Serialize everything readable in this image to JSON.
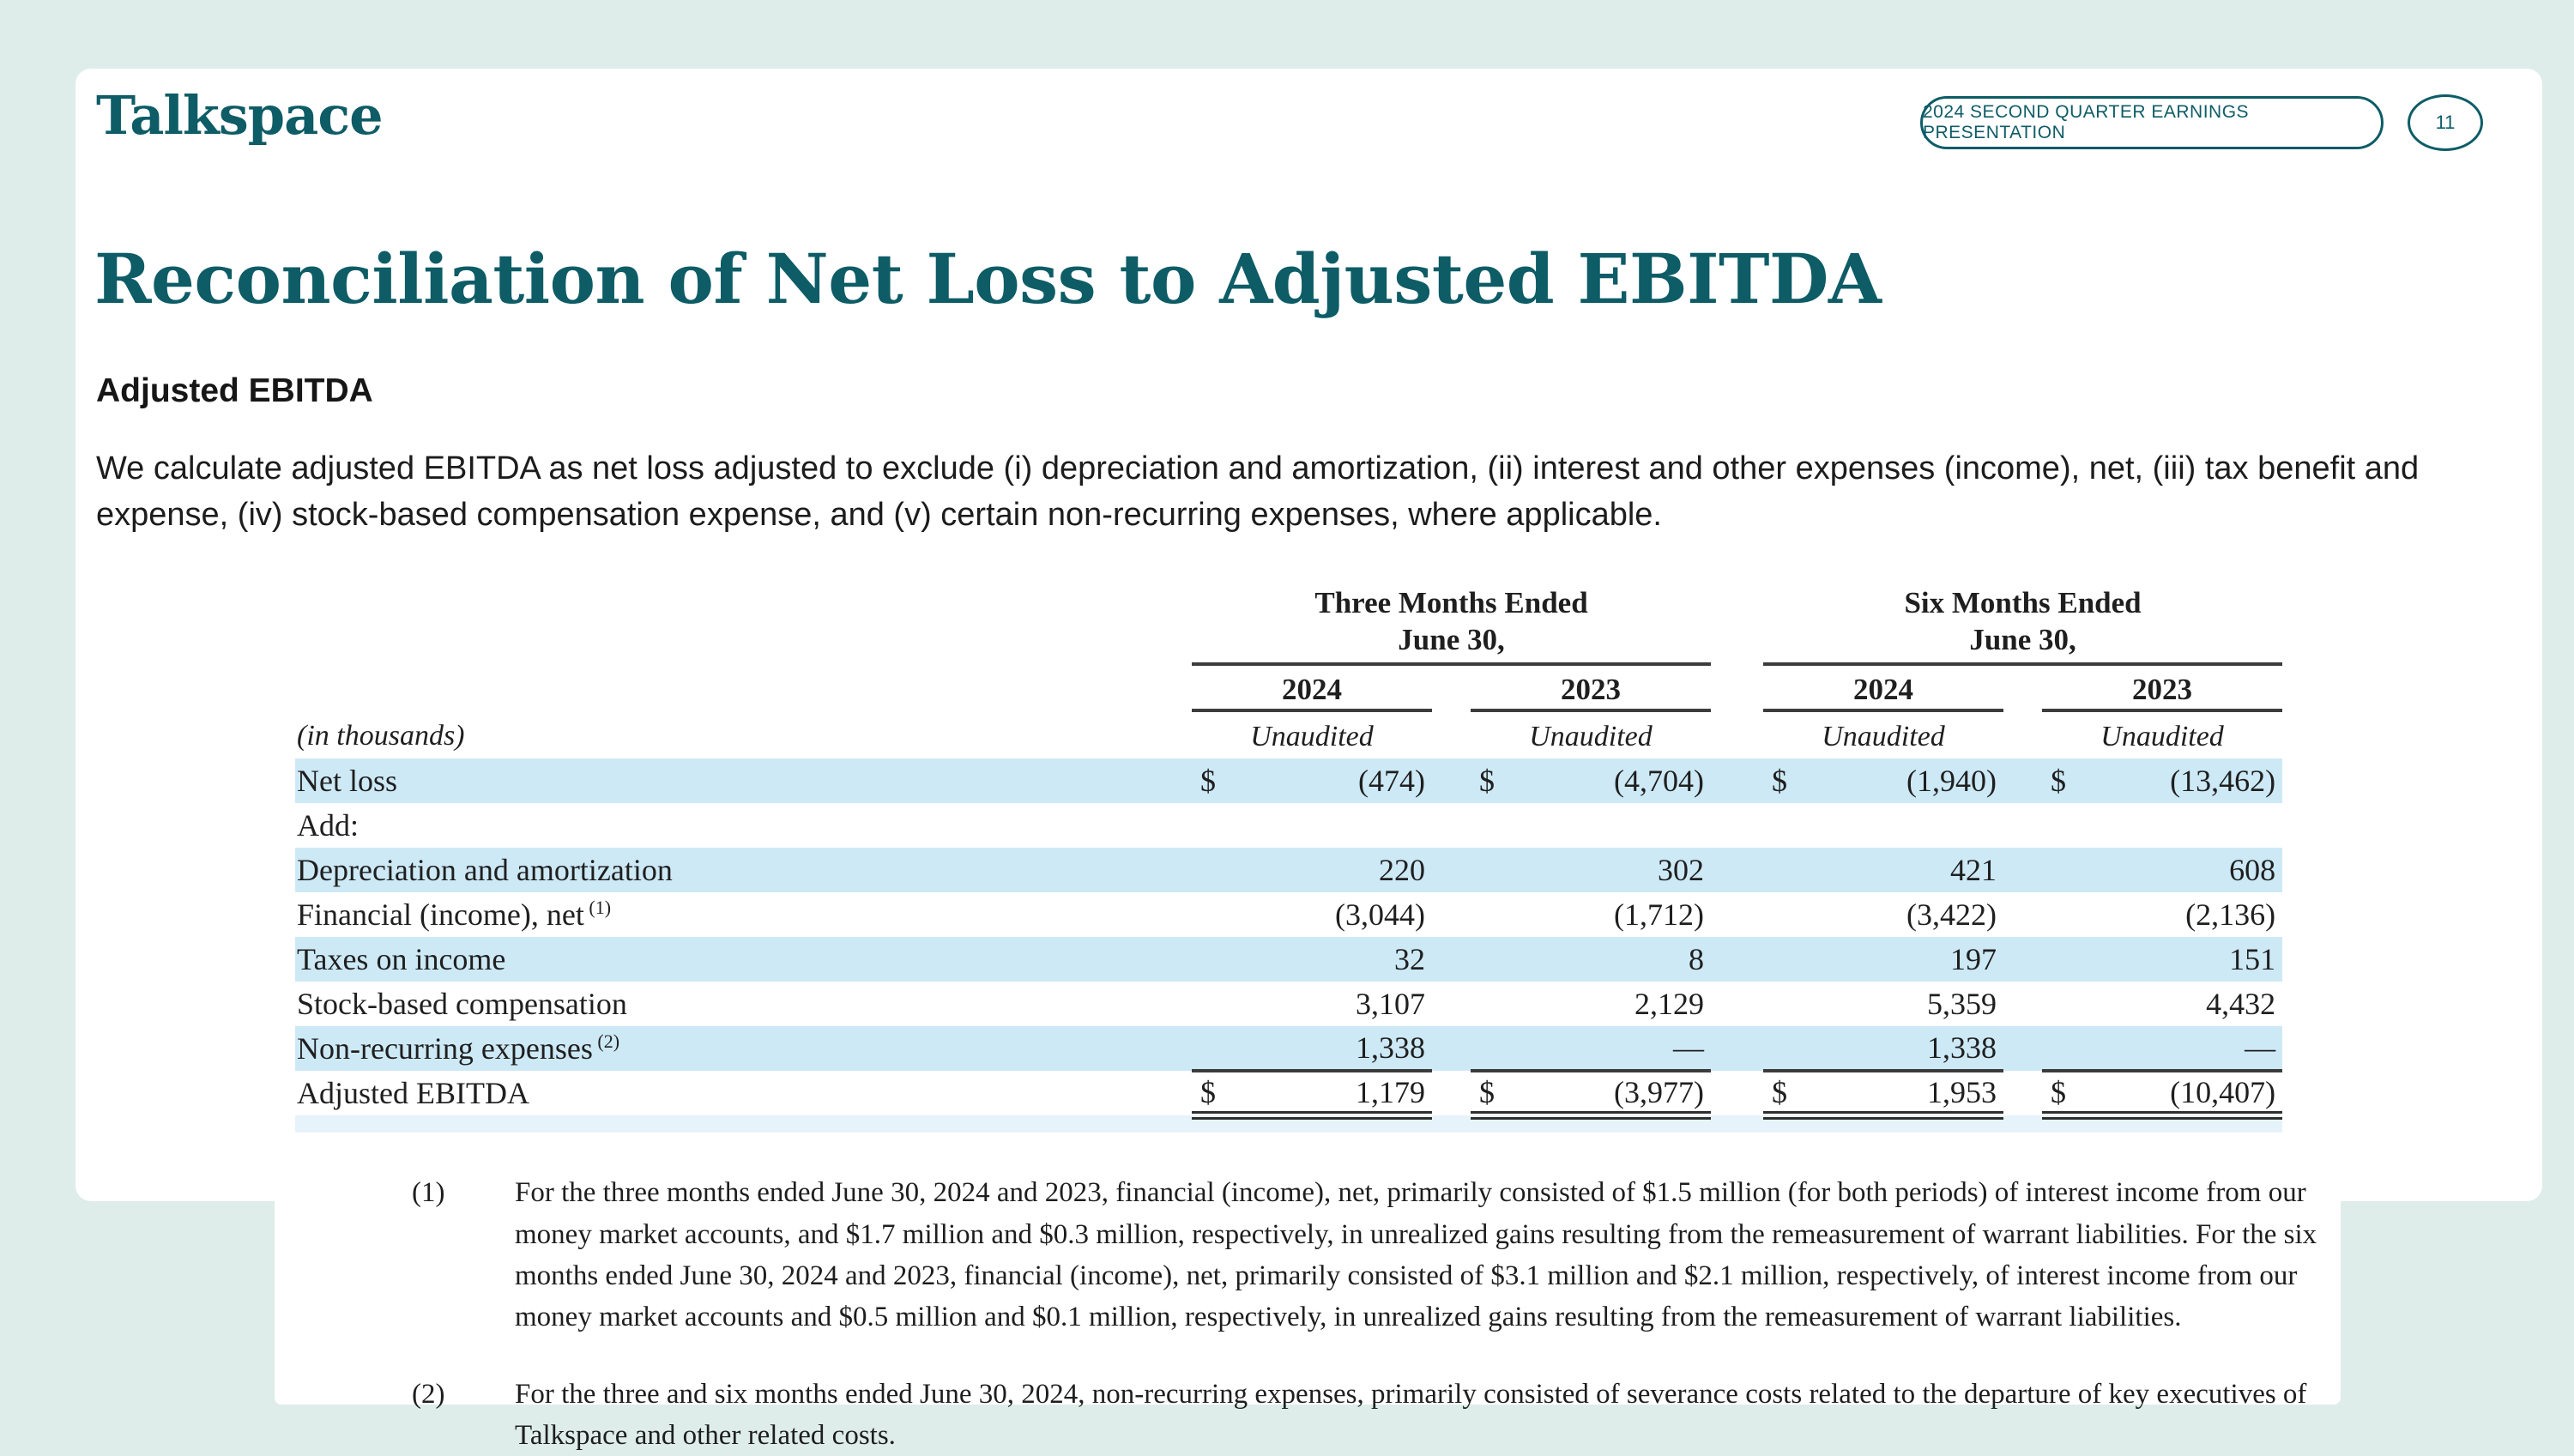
{
  "colors": {
    "background": "#deede9",
    "card": "#ffffff",
    "accent_teal": "#0d5c66",
    "row_blue": "#cde9f6",
    "row_pale": "#e7f3fa",
    "rule": "#3c3c3c"
  },
  "header": {
    "logo_text": "Talkspace",
    "badge_label": "2024 SECOND QUARTER EARNINGS PRESENTATION",
    "page_number": "11"
  },
  "title": "Reconciliation of Net Loss to Adjusted EBITDA",
  "section_heading": "Adjusted EBITDA",
  "intro_paragraph": "We calculate adjusted EBITDA as net loss adjusted to exclude (i) depreciation and amortization, (ii) interest and other expenses (income), net, (iii) tax benefit and expense, (iv) stock-based compensation expense, and (v) certain non-recurring expenses, where applicable.",
  "table": {
    "units_label": "(in thousands)",
    "unaudited_label": "Unaudited",
    "currency_symbol": "$",
    "col_groups": [
      {
        "line1": "Three Months Ended",
        "line2": "June 30,"
      },
      {
        "line1": "Six Months Ended",
        "line2": "June 30,"
      }
    ],
    "years": [
      "2024",
      "2023",
      "2024",
      "2023"
    ],
    "rows": [
      {
        "label": "Net loss",
        "dollar": true,
        "shaded": true,
        "values": [
          "(474)",
          "(4,704)",
          "(1,940)",
          "(13,462)"
        ]
      },
      {
        "label": "Add:",
        "dollar": false,
        "shaded": false,
        "values": [
          "",
          "",
          "",
          ""
        ]
      },
      {
        "label": "Depreciation and amortization",
        "dollar": false,
        "shaded": true,
        "values": [
          "220",
          "302",
          "421",
          "608"
        ]
      },
      {
        "label": "Financial (income), net",
        "sup": "(1)",
        "dollar": false,
        "shaded": false,
        "values": [
          "(3,044)",
          "(1,712)",
          "(3,422)",
          "(2,136)"
        ]
      },
      {
        "label": "Taxes on income",
        "dollar": false,
        "shaded": true,
        "values": [
          "32",
          "8",
          "197",
          "151"
        ]
      },
      {
        "label": "Stock-based compensation",
        "dollar": false,
        "shaded": false,
        "values": [
          "3,107",
          "2,129",
          "5,359",
          "4,432"
        ]
      },
      {
        "label": "Non-recurring expenses",
        "sup": "(2)",
        "dollar": false,
        "shaded": true,
        "underline": "single",
        "values": [
          "1,338",
          "—",
          "1,338",
          "—"
        ]
      },
      {
        "label": "Adjusted EBITDA",
        "dollar": true,
        "shaded": false,
        "underline": "double",
        "values": [
          "1,179",
          "(3,977)",
          "1,953",
          "(10,407)"
        ]
      }
    ]
  },
  "footnotes": [
    {
      "num": "(1)",
      "text": "For the three months ended June 30, 2024 and 2023, financial (income), net, primarily consisted of $1.5 million (for both periods) of interest income from our money market accounts, and $1.7 million and $0.3 million, respectively, in unrealized gains resulting from the remeasurement of warrant liabilities. For the six months ended June 30, 2024 and 2023, financial (income), net, primarily consisted of $3.1 million and $2.1 million, respectively, of interest income from our money market accounts and $0.5 million and $0.1 million, respectively, in unrealized gains resulting from the remeasurement of warrant liabilities."
    },
    {
      "num": "(2)",
      "text": "For the three and six months ended June 30, 2024, non-recurring expenses, primarily consisted of severance costs related to the departure of key executives of Talkspace and other related costs."
    }
  ]
}
